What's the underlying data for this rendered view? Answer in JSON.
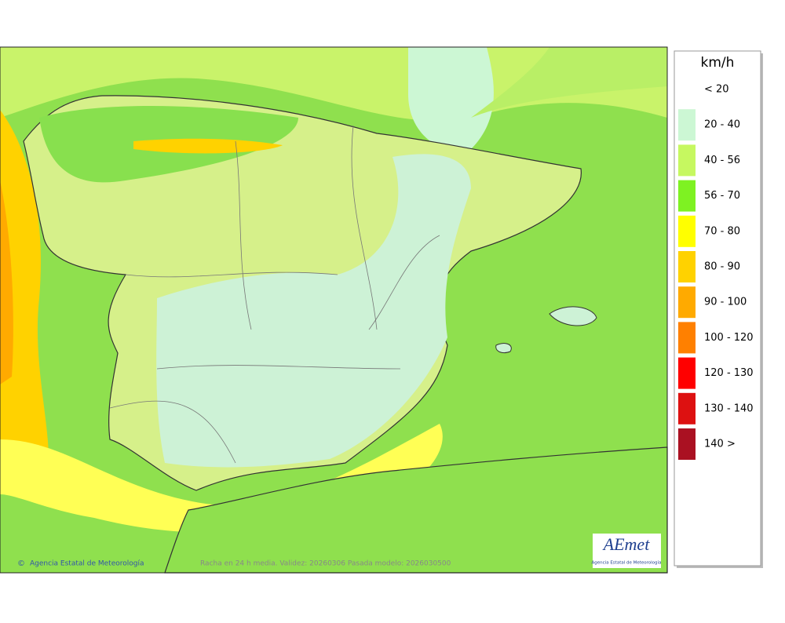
{
  "legend": {
    "title": "km/h",
    "items": [
      {
        "label": "< 20",
        "color": "#ffffff"
      },
      {
        "label": "20 - 40",
        "color": "#ccf7d4"
      },
      {
        "label": "40 - 56",
        "color": "#c6f860"
      },
      {
        "label": "56 - 70",
        "color": "#7ef222"
      },
      {
        "label": "70 - 80",
        "color": "#ffff00"
      },
      {
        "label": "80 - 90",
        "color": "#ffd200"
      },
      {
        "label": "90 - 100",
        "color": "#ffaa00"
      },
      {
        "label": "100 - 120",
        "color": "#ff8000"
      },
      {
        "label": "120 - 130",
        "color": "#ff0000"
      },
      {
        "label": "130 - 140",
        "color": "#dd1111"
      },
      {
        "label": "140 >",
        "color": "#aa1122"
      }
    ]
  },
  "footer": {
    "credit": "Agencia Estatal de Meteorología",
    "caption": "Racha en 24 h media. Validez: 20260306 Pasada modelo: 2026030500"
  },
  "logo": {
    "name": "AEmet",
    "subtitle": "Agencia Estatal de Meteorología"
  }
}
